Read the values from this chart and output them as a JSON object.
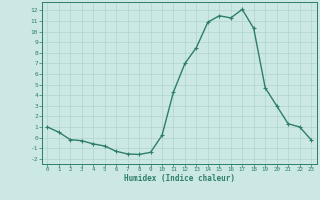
{
  "x": [
    0,
    1,
    2,
    3,
    4,
    5,
    6,
    7,
    8,
    9,
    10,
    11,
    12,
    13,
    14,
    15,
    16,
    17,
    18,
    19,
    20,
    21,
    22,
    23
  ],
  "y": [
    1.0,
    0.5,
    -0.2,
    -0.3,
    -0.6,
    -0.8,
    -1.3,
    -1.55,
    -1.6,
    -1.4,
    0.2,
    4.3,
    7.0,
    8.5,
    10.9,
    11.5,
    11.3,
    12.1,
    10.3,
    4.7,
    3.0,
    1.3,
    1.0,
    -0.2
  ],
  "color": "#2e7d6e",
  "bg_color": "#cce8e4",
  "grid_color": "#b0d5d0",
  "xlabel": "Humidex (Indice chaleur)",
  "ylim": [
    -2.5,
    12.8
  ],
  "xlim": [
    -0.5,
    23.5
  ],
  "yticks": [
    -2,
    -1,
    0,
    1,
    2,
    3,
    4,
    5,
    6,
    7,
    8,
    9,
    10,
    11,
    12
  ],
  "xticks": [
    0,
    1,
    2,
    3,
    4,
    5,
    6,
    7,
    8,
    9,
    10,
    11,
    12,
    13,
    14,
    15,
    16,
    17,
    18,
    19,
    20,
    21,
    22,
    23
  ],
  "xtick_labels": [
    "0",
    "1",
    "2",
    "3",
    "4",
    "5",
    "6",
    "7",
    "8",
    "9",
    "10",
    "11",
    "12",
    "13",
    "14",
    "15",
    "16",
    "17",
    "18",
    "19",
    "20",
    "21",
    "22",
    "23"
  ]
}
